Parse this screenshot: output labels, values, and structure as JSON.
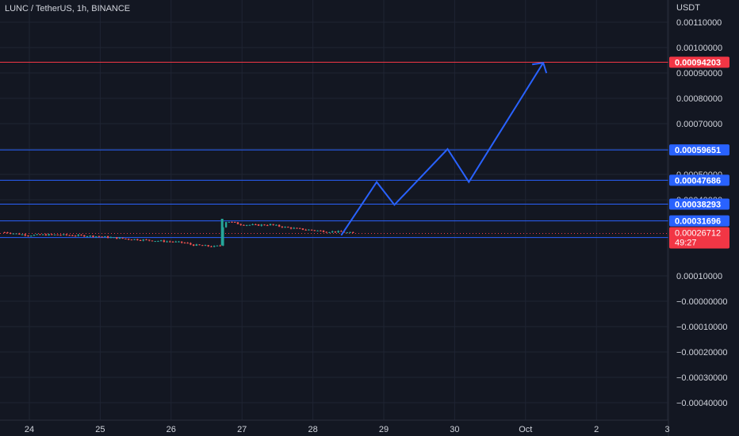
{
  "header": {
    "symbol_title": "LUNC / TetherUS, 1h, BINANCE"
  },
  "chart_data": {
    "type": "candlestick",
    "title": "LUNC / TetherUS, 1h, BINANCE",
    "ylabel": "USDT",
    "ylim": [
      -0.00045,
      0.00116
    ],
    "y_ticks": [
      "0.00110000",
      "0.00100000",
      "0.00090000",
      "0.00080000",
      "0.00070000",
      "0.00060000",
      "0.00050000",
      "0.00040000",
      "0.00010000",
      "−0.00000000",
      "−0.00010000",
      "−0.00020000",
      "−0.00030000",
      "−0.00040000"
    ],
    "y_tick_values": [
      0.0011,
      0.001,
      0.0009,
      0.0008,
      0.0007,
      0.0006,
      0.0005,
      0.0004,
      0.0001,
      0.0,
      -0.0001,
      -0.0002,
      -0.0003,
      -0.0004
    ],
    "x_ticks": [
      "24",
      "25",
      "26",
      "27",
      "28",
      "29",
      "30",
      "Oct",
      "2",
      "3"
    ],
    "x_tick_days": [
      24,
      25,
      26,
      27,
      28,
      29,
      30,
      31,
      32,
      33
    ],
    "x_range_days": [
      23.65,
      33.0
    ],
    "grid": true,
    "price_lines": [
      {
        "value": 0.00094203,
        "label": "0.00094203",
        "color": "#f23645"
      },
      {
        "value": 0.00059651,
        "label": "0.00059651",
        "color": "#2962ff"
      },
      {
        "value": 0.00047686,
        "label": "0.00047686",
        "color": "#2962ff"
      },
      {
        "value": 0.00038293,
        "label": "0.00038293",
        "color": "#2962ff"
      },
      {
        "value": 0.00031696,
        "label": "0.00031696",
        "color": "#2962ff"
      },
      {
        "value": 0.00025098,
        "label": "0.00025098",
        "color": "#2962ff"
      }
    ],
    "current_price": {
      "value": 0.00026712,
      "label": "0.00026712",
      "countdown": "49:27",
      "color": "#f23645"
    },
    "price_series": {
      "name": "LUNC/USDT close",
      "x_days": [
        23.65,
        23.85,
        24.0,
        24.2,
        24.4,
        24.6,
        24.8,
        25.0,
        25.2,
        25.4,
        25.6,
        25.8,
        26.0,
        26.2,
        26.3,
        26.4,
        26.5,
        26.6,
        26.7,
        26.72,
        26.75,
        26.8,
        27.0,
        27.2,
        27.4,
        27.6,
        27.8,
        28.0,
        28.2,
        28.4,
        28.6
      ],
      "close": [
        0.000272,
        0.000265,
        0.00026,
        0.000262,
        0.000262,
        0.00026,
        0.000258,
        0.000255,
        0.00025,
        0.000245,
        0.000242,
        0.000238,
        0.000235,
        0.00023,
        0.000222,
        0.00022,
        0.000218,
        0.000215,
        0.00022,
        0.00028,
        0.000312,
        0.000315,
        0.000302,
        0.0003,
        0.000302,
        0.000292,
        0.000285,
        0.00028,
        0.000275,
        0.000273,
        0.000267
      ]
    },
    "projection_path": {
      "x_days": [
        28.4,
        28.9,
        29.15,
        29.9,
        30.2,
        31.25
      ],
      "y": [
        0.00026,
        0.00047,
        0.00038,
        0.0006,
        0.00047,
        0.00094
      ]
    },
    "colors": {
      "background": "#131722",
      "grid": "#1f2433",
      "up": "#26a69a",
      "down": "#ef5350",
      "projection": "#2962ff",
      "resistance": "#f23645",
      "level": "#2962ff"
    }
  }
}
